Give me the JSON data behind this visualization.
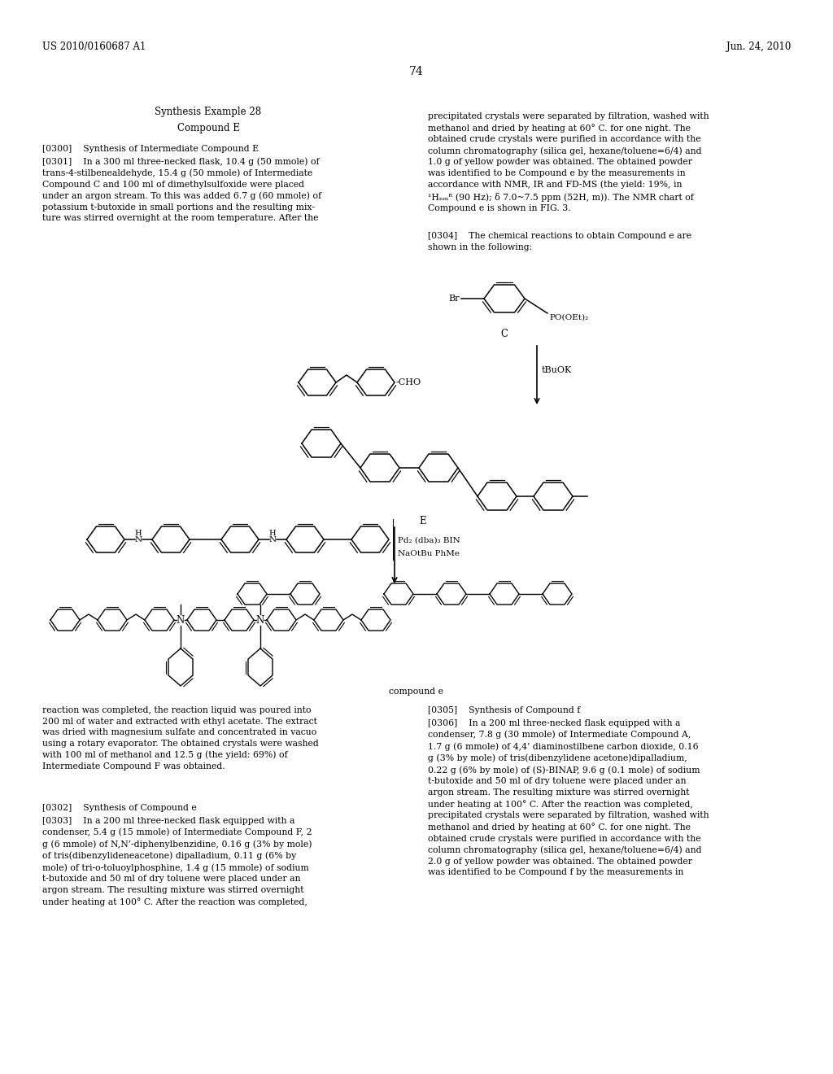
{
  "background_color": "#ffffff",
  "page_number": "74",
  "header_left": "US 2010/0160687 A1",
  "header_right": "Jun. 24, 2010",
  "title_center": "Synthesis Example 28",
  "subtitle_center": "Compound E",
  "left_col_p0300": "[0300]    Synthesis of Intermediate Compound E",
  "left_col_p0301": "[0301]    In a 300 ml three-necked flask, 10.4 g (50 mmole) of\ntrans-4-stilbenealdehyde, 15.4 g (50 mmole) of Intermediate\nCompound C and 100 ml of dimethylsulfoxide were placed\nunder an argon stream. To this was added 6.7 g (60 mmole) of\npotassium t-butoxide in small portions and the resulting mix-\nture was stirred overnight at the room temperature. After the",
  "right_col_top1": "precipitated crystals were separated by filtration, washed with\nmethanol and dried by heating at 60° C. for one night. The\nobtained crude crystals were purified in accordance with the\ncolumn chromatography (silica gel, hexane/toluene=6/4) and\n1.0 g of yellow powder was obtained. The obtained powder\nwas identified to be Compound e by the measurements in\naccordance with NMR, IR and FD-MS (the yield: 19%, in\n¹Hₙₘᴿ (90 Hz); δ 7.0~7.5 ppm (52H, m)). The NMR chart of\nCompound e is shown in FIG. 3.",
  "right_col_p0304": "[0304]    The chemical reactions to obtain Compound e are\nshown in the following:",
  "bottom_left_p1": "reaction was completed, the reaction liquid was poured into\n200 ml of water and extracted with ethyl acetate. The extract\nwas dried with magnesium sulfate and concentrated in vacuo\nusing a rotary evaporator. The obtained crystals were washed\nwith 100 ml of methanol and 12.5 g (the yield: 69%) of\nIntermediate Compound F was obtained.",
  "bottom_left_p0302": "[0302]    Synthesis of Compound e",
  "bottom_left_p0303": "[0303]    In a 200 ml three-necked flask equipped with a\ncondenser, 5.4 g (15 mmole) of Intermediate Compound F, 2\ng (6 mmole) of N,N’-diphenylbenzidine, 0.16 g (3% by mole)\nof tris(dibenzylideneacetone) dipalladium, 0.11 g (6% by\nmole) of tri-o-toluoylphosphine, 1.4 g (15 mmole) of sodium\nt-butoxide and 50 ml of dry toluene were placed under an\nargon stream. The resulting mixture was stirred overnight\nunder heating at 100° C. After the reaction was completed,",
  "bottom_right_p0305": "[0305]    Synthesis of Compound f",
  "bottom_right_p0306": "[0306]    In a 200 ml three-necked flask equipped with a\ncondenser, 7.8 g (30 mmole) of Intermediate Compound A,\n1.7 g (6 mmole) of 4,4’ diaminostilbene carbon dioxide, 0.16\ng (3% by mole) of tris(dibenzylidene acetone)dipalladium,\n0.22 g (6% by mole) of (S)-BINAP, 9.6 g (0.1 mole) of sodium\nt-butoxide and 50 ml of dry toluene were placed under an\nargon stream. The resulting mixture was stirred overnight\nunder heating at 100° C. After the reaction was completed,\nprecipitated crystals were separated by filtration, washed with\nmethanol and dried by heating at 60° C. for one night. The\nobtained crude crystals were purified in accordance with the\ncolumn chromatography (silica gel, hexane/toluene=6/4) and\n2.0 g of yellow powder was obtained. The obtained powder\nwas identified to be Compound f by the measurements in"
}
